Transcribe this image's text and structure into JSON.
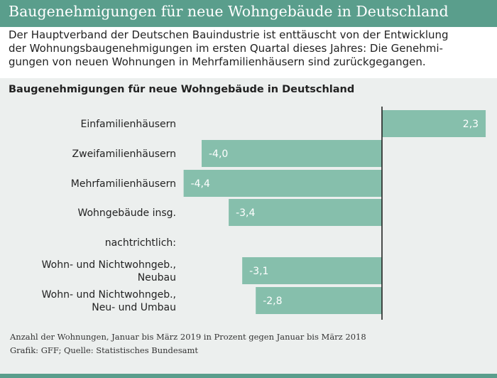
{
  "header": {
    "title": "Baugenehmigungen für neue Wohngebäude in Deutschland"
  },
  "intro": {
    "text": "Der Hauptverband der Deutschen Bauindustrie ist enttäuscht von der Entwicklung\nder Wohnungsbaugenehmigungen im ersten Quartal dieses Jahres: Die Genehmi-\ngungen von neuen Wohnungen in Mehrfamilienhäusern sind zurückgegangen."
  },
  "colors": {
    "accent": "#5a9e8c",
    "bar": "#86bfac",
    "panel": "#ecefee"
  },
  "chart_data": {
    "type": "bar",
    "orientation": "horizontal",
    "title": "Baugenehmigungen für neue Wohngebäude in Deutschland",
    "rows": [
      {
        "label": "Einfamilienhäusern",
        "value": 2.3,
        "value_label": "2,3"
      },
      {
        "label": "Zweifamilienhäusern",
        "value": -4.0,
        "value_label": "-4,0"
      },
      {
        "label": "Mehrfamilienhäusern",
        "value": -4.4,
        "value_label": "-4,4"
      },
      {
        "label": "Wohngebäude insg.",
        "value": -3.4,
        "value_label": "-3,4"
      },
      {
        "label": "nachtrichtlich:",
        "value": null,
        "value_label": ""
      },
      {
        "label": "Wohn- und Nichtwohngeb.,\nNeubau",
        "value": -3.1,
        "value_label": "-3,1"
      },
      {
        "label": "Wohn- und Nichtwohngeb.,\nNeu- und Umbau",
        "value": -2.8,
        "value_label": "-2,8"
      }
    ],
    "xlim": [
      -4.4,
      2.3
    ],
    "grid": false,
    "legend": "none"
  },
  "footer": {
    "note": "Anzahl der Wohnungen, Januar bis März 2019 in Prozent gegen Januar bis März 2018",
    "source": "Grafik: GFF; Quelle: Statistisches Bundesamt"
  }
}
